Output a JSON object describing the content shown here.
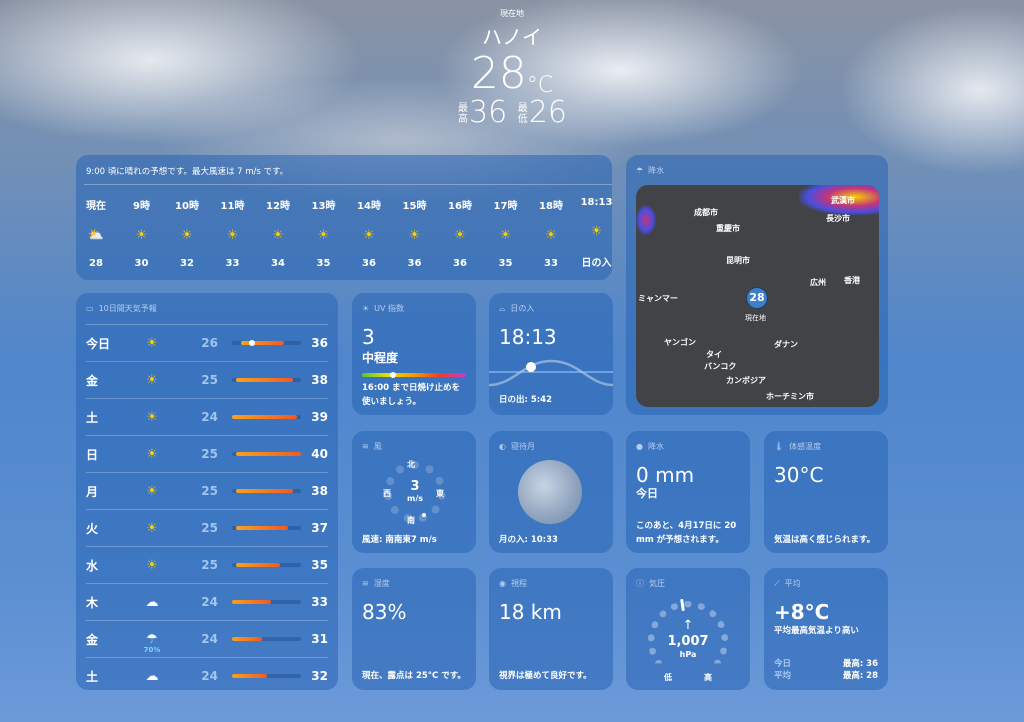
{
  "header": {
    "location_label": "現在地",
    "city": "ハノイ",
    "temp": "28",
    "unit": "°C",
    "high_label": "最高",
    "high": "36",
    "low_label": "最低",
    "low": "26"
  },
  "hourly": {
    "summary": "9:00 頃に晴れの予想です。最大風速は 7 m/s です。",
    "items": [
      {
        "time": "現在",
        "icon": "partly-sunny",
        "temp": "28"
      },
      {
        "time": "9時",
        "icon": "sun",
        "temp": "30"
      },
      {
        "time": "10時",
        "icon": "sun",
        "temp": "32"
      },
      {
        "time": "11時",
        "icon": "sun",
        "temp": "33"
      },
      {
        "time": "12時",
        "icon": "sun",
        "temp": "34"
      },
      {
        "time": "13時",
        "icon": "sun",
        "temp": "35"
      },
      {
        "time": "14時",
        "icon": "sun",
        "temp": "36"
      },
      {
        "time": "15時",
        "icon": "sun",
        "temp": "36"
      },
      {
        "time": "16時",
        "icon": "sun",
        "temp": "36"
      },
      {
        "time": "17時",
        "icon": "sun",
        "temp": "35"
      },
      {
        "time": "18時",
        "icon": "sun",
        "temp": "33"
      },
      {
        "time": "18:13",
        "icon": "sunset",
        "temp": "日の入"
      }
    ]
  },
  "map": {
    "title": "降水",
    "marker": "28",
    "marker_label": "現在地",
    "cities": [
      "成都市",
      "重慶市",
      "武漢市",
      "長沙市",
      "昆明市",
      "広州",
      "香港",
      "ミャンマー",
      "ヤンゴン",
      "タイ",
      "バンコク",
      "ダナン",
      "カンボジア",
      "ホーチミン市"
    ]
  },
  "forecast": {
    "title": "10日間天気予報",
    "range": [
      24,
      40
    ],
    "days": [
      {
        "day": "今日",
        "icon": "sun",
        "low": 26,
        "high": 36,
        "current": 28
      },
      {
        "day": "金",
        "icon": "sun",
        "low": 25,
        "high": 38
      },
      {
        "day": "土",
        "icon": "sun",
        "low": 24,
        "high": 39
      },
      {
        "day": "日",
        "icon": "sun",
        "low": 25,
        "high": 40
      },
      {
        "day": "月",
        "icon": "sun",
        "low": 25,
        "high": 38
      },
      {
        "day": "火",
        "icon": "sun",
        "low": 25,
        "high": 37
      },
      {
        "day": "水",
        "icon": "sun",
        "low": 25,
        "high": 35
      },
      {
        "day": "木",
        "icon": "cloud",
        "low": 24,
        "high": 33
      },
      {
        "day": "金",
        "icon": "cloud-rain",
        "low": 24,
        "high": 31,
        "precip": "70%"
      },
      {
        "day": "土",
        "icon": "cloud",
        "low": 24,
        "high": 32
      }
    ]
  },
  "uv": {
    "title": "UV 指数",
    "value": "3",
    "level": "中程度",
    "note": "16:00 まで日焼け止めを使いましょう。",
    "fraction": 0.27
  },
  "sunset": {
    "title": "日の入",
    "time": "18:13",
    "sunrise": "日の出: 5:42"
  },
  "wind": {
    "title": "風",
    "speed": "3",
    "unit": "m/s",
    "n": "北",
    "s": "南",
    "e": "東",
    "w": "西",
    "note": "風速: 南南東7 m/s"
  },
  "moon": {
    "title": "寝待月",
    "note": "月の入: 10:33"
  },
  "precip": {
    "title": "降水",
    "value": "0 mm",
    "period": "今日",
    "note": "このあと、4月17日に 20 mm が予想されます。"
  },
  "feels": {
    "title": "体感温度",
    "value": "30°C",
    "note": "気温は高く感じられます。"
  },
  "humidity": {
    "title": "湿度",
    "value": "83%",
    "note": "現在、露点は 25°C です。"
  },
  "visibility": {
    "title": "視程",
    "value": "18 km",
    "note": "視界は極めて良好です。"
  },
  "pressure": {
    "title": "気圧",
    "value": "1,007",
    "unit": "hPa",
    "low": "低",
    "high": "高"
  },
  "average": {
    "title": "平均",
    "value": "+8°C",
    "note": "平均最高気温より高い",
    "today_label": "今日",
    "today": "最高: 36",
    "avg_label": "平均",
    "avg": "最高: 28"
  }
}
